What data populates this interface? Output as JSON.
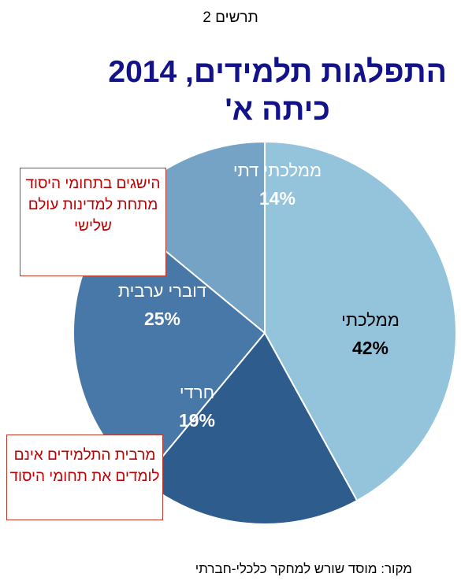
{
  "figure_label": "תרשים 2",
  "title_line1": "התפלגות תלמידים, 2014",
  "title_line2": "כיתה א'",
  "notes": {
    "note1": "הישגים בתחומי היסוד מתחת למדינות עולם שלישי",
    "note2": "מרבית התלמידים אינם לומדים את תחומי היסוד"
  },
  "source": "מקור:  מוסד שורש למחקר כלכלי-חברתי",
  "chart_data": {
    "type": "pie",
    "title": "התפלגות תלמידים, 2014 כיתה א'",
    "slices": [
      {
        "label": "ממלכתי",
        "value": 42,
        "value_label": "42%",
        "color": "#94c4dc",
        "text_color": "#000000"
      },
      {
        "label": "חרדי",
        "value": 19,
        "value_label": "19%",
        "color": "#2d5c8d",
        "text_color": "#ffffff"
      },
      {
        "label": "דוברי ערבית",
        "value": 25,
        "value_label": "25%",
        "color": "#4778a8",
        "text_color": "#ffffff"
      },
      {
        "label": "ממלכתי דתי",
        "value": 14,
        "value_label": "14%",
        "color": "#75a3c6",
        "text_color": "#ffffff"
      }
    ]
  }
}
